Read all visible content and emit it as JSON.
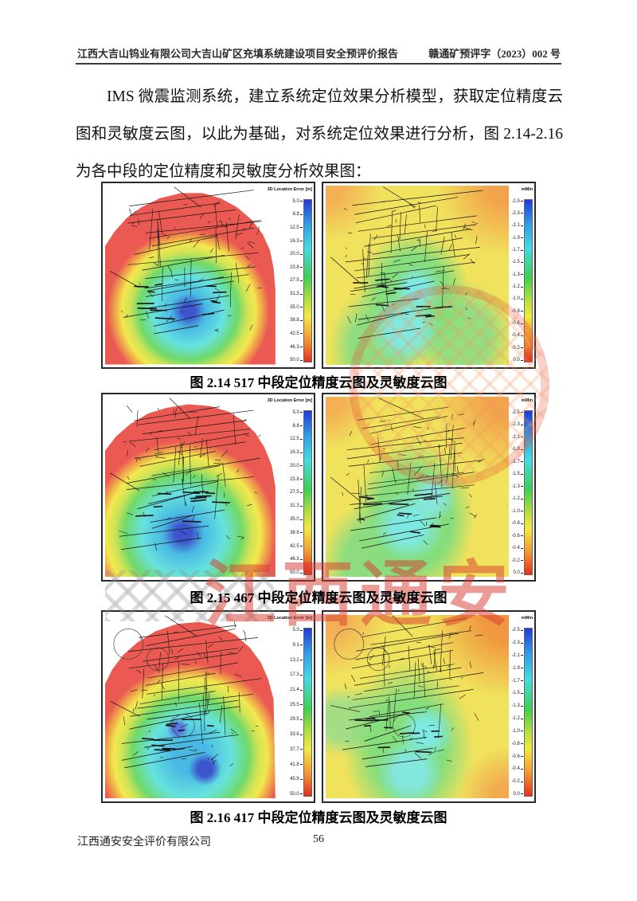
{
  "header": {
    "left": "江西大吉山钨业有限公司大吉山矿区充填系统建设项目安全预评价报告",
    "right": "赣通矿预评字（2023）002 号"
  },
  "paragraph": "IMS 微震监测系统，建立系统定位效果分析模型，获取定位精度云图和灵敏度云图，以此为基础，对系统定位效果进行分析，图 2.14-2.16 为各中段的定位精度和灵敏度分析效果图：",
  "figures": [
    {
      "caption": "图 2.14 517 中段定位精度云图及灵敏度云图",
      "panels": [
        {
          "type": "precision",
          "colorbar_title": "3D Location Error [m]",
          "ticks": [
            "5.0",
            "8.8",
            "12.5",
            "16.3",
            "20.0",
            "23.8",
            "27.5",
            "31.3",
            "35.0",
            "38.8",
            "42.5",
            "46.3",
            "50.0"
          ]
        },
        {
          "type": "sensitivity",
          "colorbar_title": "mMin",
          "ticks": [
            "-2.5",
            "-2.3",
            "-2.1",
            "-1.9",
            "-1.7",
            "-1.5",
            "-1.3",
            "-1.2",
            "-1.0",
            "-0.8",
            "-0.6",
            "-0.4",
            "-0.2",
            "0.0"
          ]
        }
      ]
    },
    {
      "caption": "图 2.15 467 中段定位精度云图及灵敏度云图",
      "panels": [
        {
          "type": "precision",
          "colorbar_title": "3D Location Error [m]",
          "ticks": [
            "5.0",
            "8.8",
            "12.5",
            "16.3",
            "20.0",
            "23.8",
            "27.5",
            "31.3",
            "35.0",
            "38.8",
            "42.5",
            "46.3",
            "50.0"
          ]
        },
        {
          "type": "sensitivity",
          "colorbar_title": "mMin",
          "ticks": [
            "-2.5",
            "-2.3",
            "-2.1",
            "-1.9",
            "-1.7",
            "-1.5",
            "-1.3",
            "-1.2",
            "-1.0",
            "-0.8",
            "-0.6",
            "-0.4",
            "-0.2",
            "0.0"
          ]
        }
      ]
    },
    {
      "caption": "图 2.16  417 中段定位精度云图及灵敏度云图",
      "panels": [
        {
          "type": "precision",
          "colorbar_title": "3D Location Error [m]",
          "ticks": [
            "5.0",
            "9.1",
            "13.2",
            "17.3",
            "21.4",
            "25.5",
            "29.5",
            "33.6",
            "37.7",
            "41.8",
            "45.9",
            "50.0"
          ]
        },
        {
          "type": "sensitivity",
          "colorbar_title": "mMin",
          "ticks": [
            "-2.5",
            "-2.3",
            "-2.1",
            "-1.9",
            "-1.7",
            "-1.5",
            "-1.3",
            "-1.2",
            "-1.0",
            "-0.8",
            "-0.6",
            "-0.4",
            "-0.2",
            "0.0"
          ]
        }
      ]
    }
  ],
  "footer": {
    "company": "江西通安安全评价有限公司",
    "page_number": "56"
  },
  "watermark": {
    "text": "江西通安"
  },
  "colors": {
    "map_red": "#ea5a52",
    "map_yellow": "#f0e25c",
    "watermark_red": "#d93a30"
  }
}
